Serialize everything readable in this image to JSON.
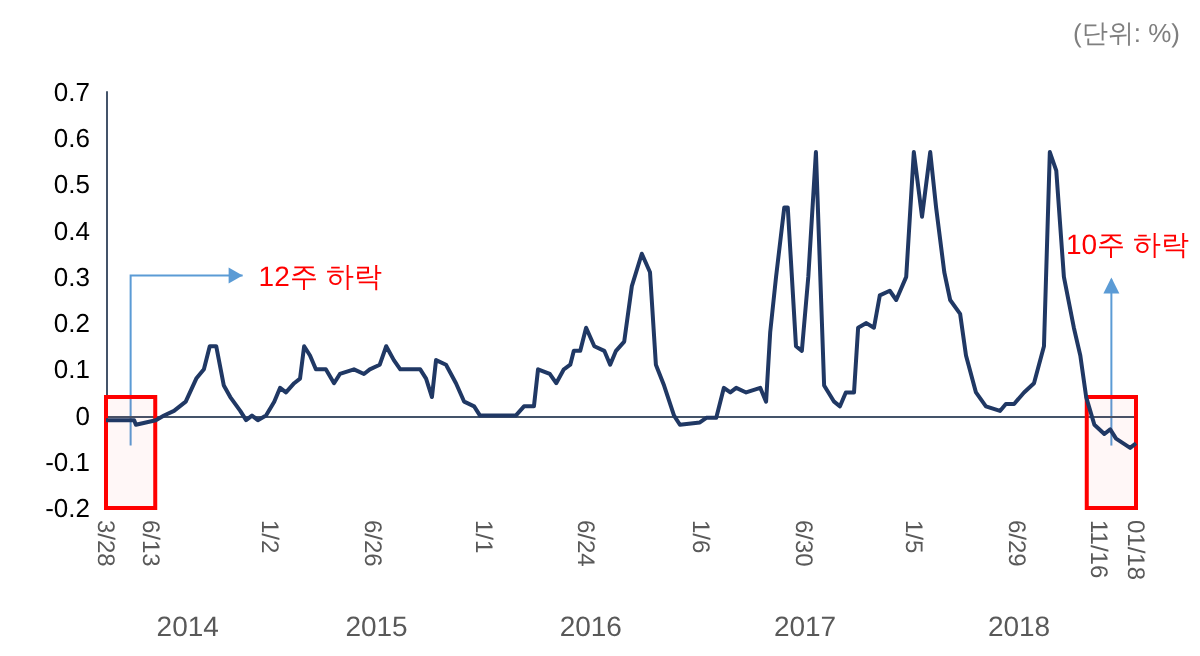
{
  "chart_data": {
    "type": "line",
    "color": "#203864",
    "marker": "none",
    "line_style": "solid",
    "x": [
      "2014-03-28",
      "2014-05-15",
      "2014-05-18",
      "2014-06-21",
      "2014-07-05",
      "2014-07-22",
      "2014-08-11",
      "2014-08-29",
      "2014-09-11",
      "2014-09-21",
      "2014-10-02",
      "2014-10-15",
      "2014-10-26",
      "2014-11-12",
      "2014-11-22",
      "2014-12-02",
      "2014-12-12",
      "2014-12-26",
      "2015-01-09",
      "2015-01-19",
      "2015-01-29",
      "2015-02-12",
      "2015-02-22",
      "2015-03-01",
      "2015-03-11",
      "2015-03-21",
      "2015-04-07",
      "2015-04-21",
      "2015-05-01",
      "2015-05-25",
      "2015-06-11",
      "2015-06-21",
      "2015-07-08",
      "2015-07-19",
      "2015-08-01",
      "2015-08-12",
      "2015-09-15",
      "2015-09-25",
      "2015-10-05",
      "2015-10-12",
      "2015-10-29",
      "2015-11-15",
      "2015-11-29",
      "2015-12-16",
      "2015-12-26",
      "2016-02-25",
      "2016-03-10",
      "2016-03-27",
      "2016-04-03",
      "2016-04-23",
      "2016-05-04",
      "2016-05-17",
      "2016-05-28",
      "2016-06-03",
      "2016-06-14",
      "2016-06-24",
      "2016-07-08",
      "2016-07-25",
      "2016-08-04",
      "2016-08-14",
      "2016-08-28",
      "2016-09-10",
      "2016-09-27",
      "2016-10-11",
      "2016-10-21",
      "2016-11-04",
      "2016-11-21",
      "2016-12-01",
      "2017-01-04",
      "2017-01-15",
      "2017-02-01",
      "2017-02-14",
      "2017-02-25",
      "2017-03-07",
      "2017-03-24",
      "2017-04-17",
      "2017-04-27",
      "2017-05-04",
      "2017-05-14",
      "2017-05-28",
      "2017-06-03",
      "2017-06-17",
      "2017-06-27",
      "2017-07-08",
      "2017-07-21",
      "2017-08-04",
      "2017-08-21",
      "2017-08-31",
      "2017-09-10",
      "2017-09-24",
      "2017-10-01",
      "2017-10-15",
      "2017-10-28",
      "2017-11-07",
      "2017-11-24",
      "2017-12-05",
      "2017-12-22",
      "2018-01-04",
      "2018-01-18",
      "2018-02-01",
      "2018-02-11",
      "2018-02-25",
      "2018-03-07",
      "2018-03-24",
      "2018-04-03",
      "2018-04-20",
      "2018-05-07",
      "2018-05-31",
      "2018-06-10",
      "2018-06-24",
      "2018-07-11",
      "2018-07-28",
      "2018-08-14",
      "2018-08-24",
      "2018-09-04",
      "2018-09-17",
      "2018-10-04",
      "2018-10-15",
      "2018-10-25",
      "2018-11-08",
      "2018-11-25",
      "2018-12-05",
      "2018-12-15",
      "2019-01-08",
      "2019-01-18"
    ],
    "values": [
      -0.01,
      -0.01,
      -0.02,
      -0.01,
      0.0,
      0.01,
      0.03,
      0.08,
      0.1,
      0.15,
      0.15,
      0.065,
      0.04,
      0.01,
      -0.01,
      0.0,
      -0.01,
      0.0,
      0.03,
      0.06,
      0.05,
      0.07,
      0.08,
      0.15,
      0.13,
      0.1,
      0.1,
      0.07,
      0.09,
      0.1,
      0.09,
      0.1,
      0.11,
      0.15,
      0.12,
      0.1,
      0.1,
      0.08,
      0.04,
      0.12,
      0.11,
      0.07,
      0.03,
      0.02,
      0.0,
      0.0,
      0.02,
      0.02,
      0.1,
      0.09,
      0.07,
      0.1,
      0.11,
      0.14,
      0.14,
      0.19,
      0.15,
      0.14,
      0.11,
      0.14,
      0.16,
      0.28,
      0.35,
      0.31,
      0.11,
      0.065,
      0.0,
      -0.02,
      -0.015,
      -0.005,
      -0.005,
      0.06,
      0.05,
      0.06,
      0.05,
      0.06,
      0.03,
      0.18,
      0.3,
      0.45,
      0.45,
      0.15,
      0.14,
      0.3,
      0.57,
      0.065,
      0.03,
      0.02,
      0.05,
      0.05,
      0.19,
      0.2,
      0.19,
      0.26,
      0.27,
      0.25,
      0.3,
      0.57,
      0.43,
      0.57,
      0.45,
      0.31,
      0.25,
      0.22,
      0.13,
      0.05,
      0.02,
      0.01,
      0.025,
      0.025,
      0.05,
      0.07,
      0.15,
      0.57,
      0.53,
      0.3,
      0.19,
      0.13,
      0.04,
      -0.02,
      -0.04,
      -0.03,
      -0.05,
      -0.07,
      -0.06
    ],
    "xlim": [
      "2014-03-28",
      "2019-01-18"
    ],
    "xticks": [
      {
        "value": "2014-03-28",
        "label": "3/28"
      },
      {
        "value": "2014-06-13",
        "label": "6/13"
      },
      {
        "value": "2015-01-02",
        "label": "1/2"
      },
      {
        "value": "2015-06-26",
        "label": "6/26"
      },
      {
        "value": "2016-01-01",
        "label": "1/1"
      },
      {
        "value": "2016-06-24",
        "label": "6/24"
      },
      {
        "value": "2017-01-06",
        "label": "1/6"
      },
      {
        "value": "2017-06-30",
        "label": "6/30"
      },
      {
        "value": "2018-01-05",
        "label": "1/5"
      },
      {
        "value": "2018-06-29",
        "label": "6/29"
      },
      {
        "value": "2018-11-16",
        "label": "11/16"
      },
      {
        "value": "2019-01-18",
        "label": "01/18"
      }
    ],
    "ylim": [
      -0.2,
      0.7
    ],
    "yticks": [
      -0.2,
      -0.1,
      0,
      0.1,
      0.2,
      0.3,
      0.4,
      0.5,
      0.6,
      0.7
    ],
    "bands": [
      {
        "axis": "x",
        "from": "2014-03-28",
        "to": "2014-06-20",
        "color": "#ff0000"
      },
      {
        "axis": "x",
        "from": "2018-10-26",
        "to": "2019-01-18",
        "color": "#ff0000"
      }
    ],
    "annotations": [
      "(단위: %)",
      "2014",
      "2015",
      "2016",
      "2017",
      "2018",
      "12주 하락",
      "10주 하락"
    ]
  }
}
